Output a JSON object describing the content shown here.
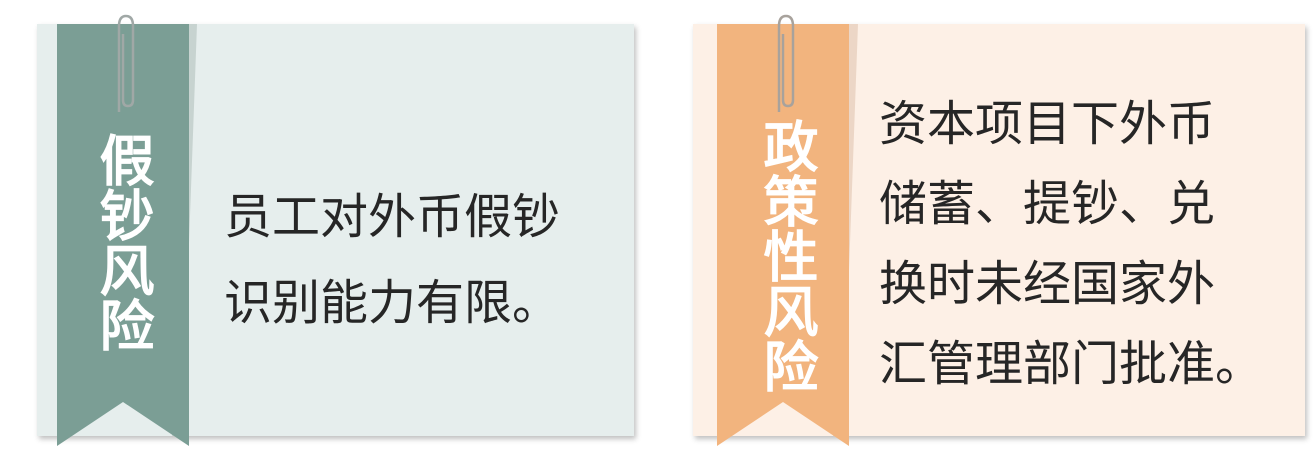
{
  "cards": [
    {
      "title": "假钞风险",
      "ribbon_color": "#7b9e95",
      "background": "#e6eeed",
      "lines": [
        "员工对外币假钞",
        "识别能力有限。"
      ]
    },
    {
      "title": "政策性风险",
      "ribbon_color": "#f2b47e",
      "background": "#fdf0e6",
      "lines": [
        "资本项目下外币",
        "储蓄、提钞、兑",
        "换时未经国家外",
        "汇管理部门批准。"
      ]
    }
  ],
  "icons": [
    "paperclip-icon"
  ]
}
